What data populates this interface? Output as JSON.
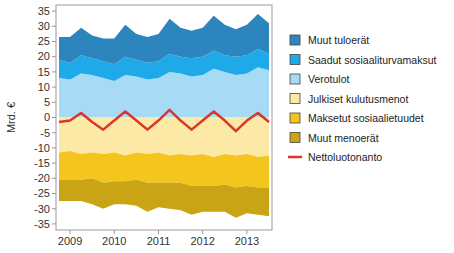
{
  "chart_data": {
    "type": "area",
    "stacked": true,
    "grid": false,
    "legend": "right",
    "y_label": "Mrd. €",
    "categories": [
      null,
      "2009",
      null,
      null,
      null,
      "2010",
      null,
      null,
      null,
      "2011",
      null,
      null,
      null,
      "2012",
      null,
      null,
      null,
      "2013",
      null,
      null
    ],
    "ylim": [
      -37,
      37
    ],
    "yticks": [
      -35,
      -30,
      -25,
      -20,
      -15,
      -10,
      -5,
      0,
      5,
      10,
      15,
      20,
      25,
      30,
      35
    ],
    "series": [
      {
        "name": "Muut tuloerät",
        "color": "#2c86bd",
        "values": [
          7.5,
          8.5,
          9.0,
          7.5,
          7.5,
          8.5,
          10.5,
          8.5,
          8.5,
          9.0,
          11.5,
          9.5,
          9.0,
          9.5,
          11.5,
          10.0,
          9.0,
          10.0,
          11.5,
          10.0
        ]
      },
      {
        "name": "Saadut sosiaaliturvamaksut",
        "color": "#1fa9e8",
        "values": [
          6.0,
          5.5,
          6.0,
          5.5,
          5.5,
          5.5,
          6.0,
          5.5,
          5.5,
          5.5,
          6.0,
          5.5,
          6.0,
          6.0,
          6.0,
          5.5,
          6.0,
          6.0,
          6.0,
          5.5
        ]
      },
      {
        "name": "Verotulot",
        "color": "#a6daf5",
        "values": [
          13.0,
          12.5,
          14.5,
          14.0,
          13.0,
          12.0,
          14.0,
          13.5,
          12.5,
          13.0,
          15.0,
          14.5,
          13.5,
          14.0,
          16.0,
          15.0,
          14.0,
          14.5,
          16.5,
          15.5
        ]
      },
      {
        "name": "Julkiset kulutusmenot",
        "color": "#fde9a6",
        "values": [
          -11.5,
          -11.0,
          -12.0,
          -11.5,
          -12.0,
          -11.5,
          -12.5,
          -11.5,
          -12.0,
          -11.5,
          -12.5,
          -12.0,
          -12.5,
          -12.0,
          -13.0,
          -12.0,
          -12.5,
          -12.0,
          -13.0,
          -12.5
        ]
      },
      {
        "name": "Maksetut sosiaalietuudet",
        "color": "#f4c51c",
        "values": [
          -9.0,
          -9.5,
          -8.5,
          -8.5,
          -9.5,
          -9.5,
          -8.5,
          -9.0,
          -9.5,
          -10.0,
          -9.0,
          -9.5,
          -10.0,
          -10.5,
          -9.5,
          -10.0,
          -10.5,
          -10.5,
          -10.0,
          -10.5
        ]
      },
      {
        "name": "Muut menoerät",
        "color": "#c9a516",
        "values": [
          -7.0,
          -7.0,
          -7.0,
          -8.5,
          -8.5,
          -7.5,
          -7.5,
          -8.5,
          -9.5,
          -8.0,
          -8.5,
          -9.0,
          -9.5,
          -8.5,
          -8.5,
          -9.0,
          -10.0,
          -9.0,
          -9.0,
          -9.5
        ]
      },
      {
        "name": "Nettoluotonanto",
        "color": "#d9372a",
        "type": "line",
        "values": [
          -1.5,
          -1.0,
          1.5,
          -1.5,
          -4.0,
          -1.0,
          2.0,
          -1.0,
          -4.0,
          -1.0,
          2.5,
          -1.0,
          -4.0,
          -1.0,
          2.0,
          -1.0,
          -4.5,
          -1.0,
          1.5,
          -1.5
        ]
      }
    ]
  }
}
